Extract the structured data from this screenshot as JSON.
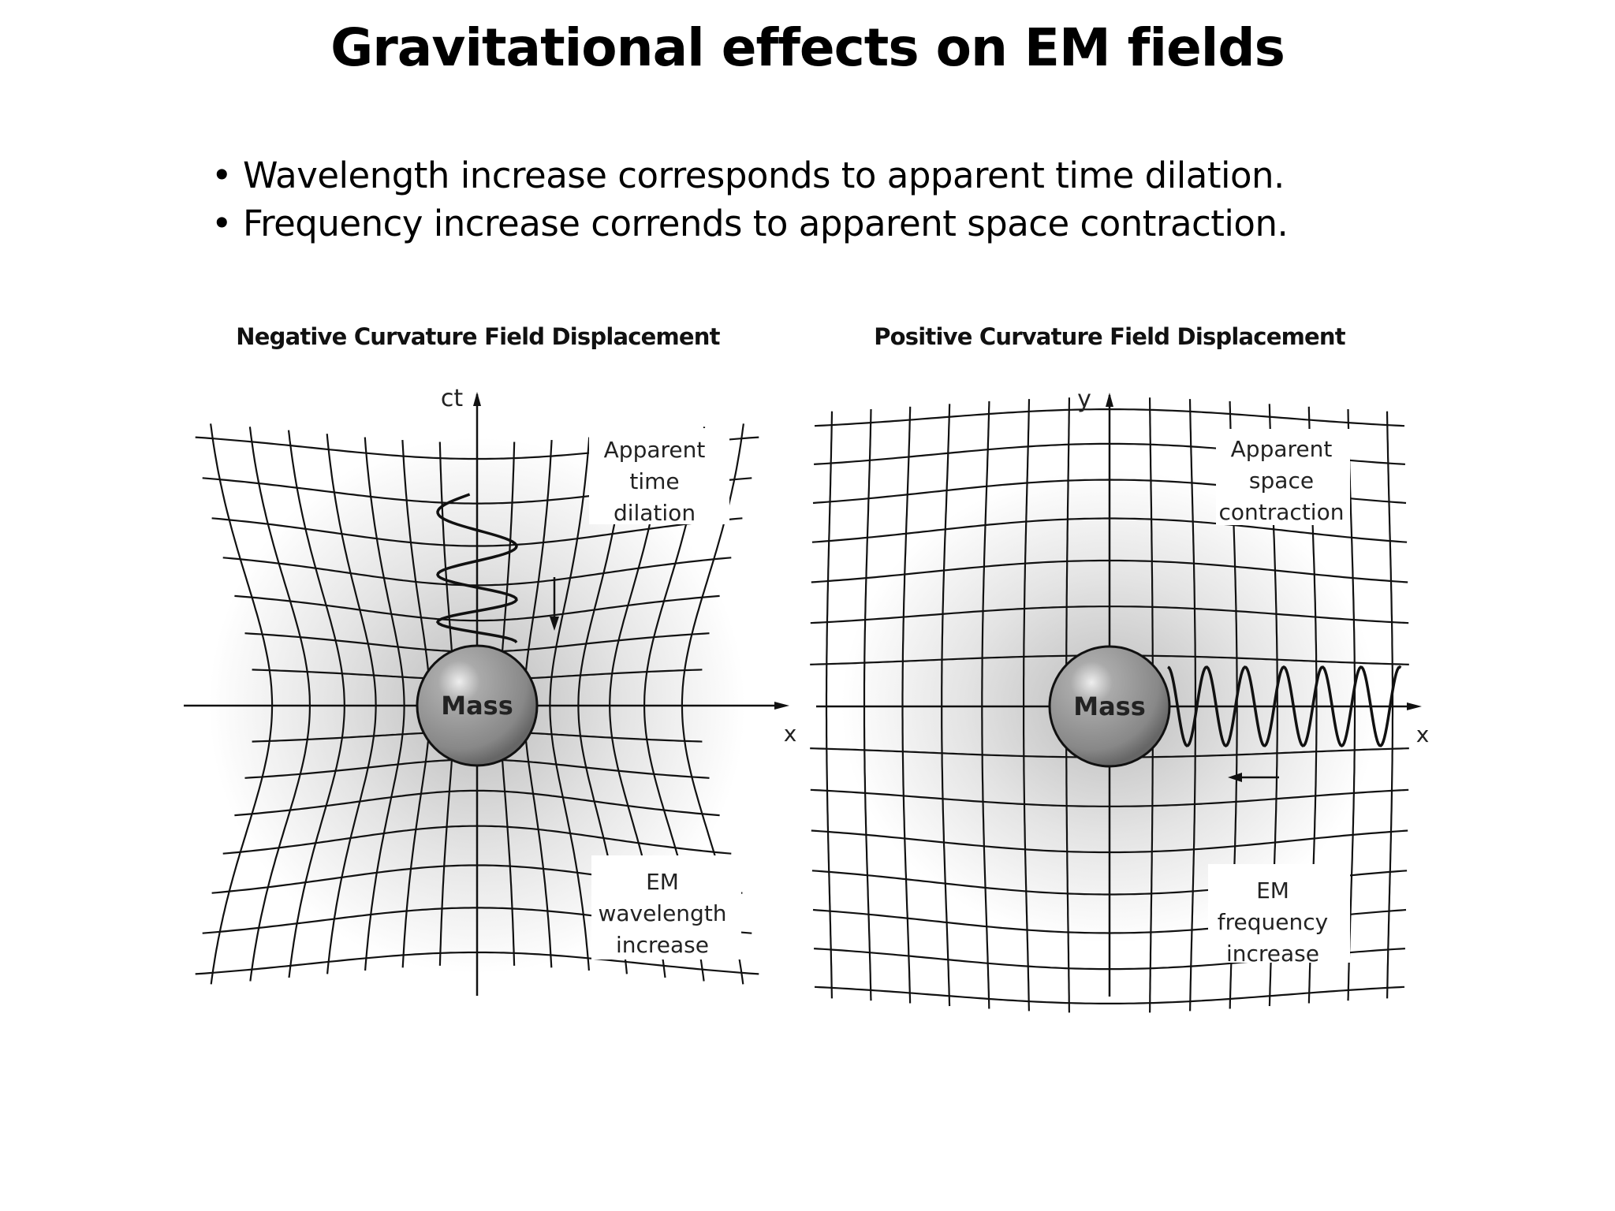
{
  "title": "Gravitational effects on EM fields",
  "bullets": [
    "Wavelength increase corresponds to apparent time dilation.",
    "Frequency increase corrends to apparent space contraction."
  ],
  "left_panel": {
    "heading": "Negative Curvature Field Displacement",
    "vertical_axis": "ct",
    "horizontal_axis": "x",
    "mass_label": "Mass",
    "top_note": [
      "Apparent",
      "time",
      "dilation"
    ],
    "bottom_note": [
      "EM",
      "wavelength",
      "increase"
    ],
    "arrow_direction": "down"
  },
  "right_panel": {
    "heading": "Positive Curvature Field Displacement",
    "vertical_axis": "y",
    "horizontal_axis": "x",
    "mass_label": "Mass",
    "top_note": [
      "Apparent",
      "space",
      "contraction"
    ],
    "bottom_note": [
      "EM",
      "frequency",
      "increase"
    ],
    "arrow_direction": "left"
  }
}
